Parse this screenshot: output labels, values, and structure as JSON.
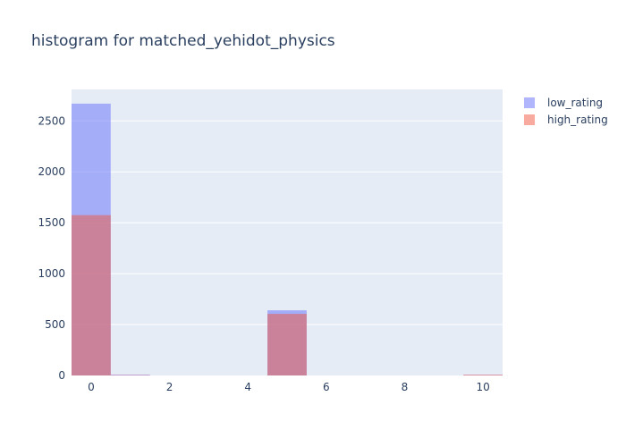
{
  "chart_data": {
    "type": "bar",
    "title": "histogram for matched_yehidot_physics",
    "xlabel": "",
    "ylabel": "",
    "barmode": "overlay",
    "bin_width": 1,
    "xlim": [
      -0.5,
      10.5
    ],
    "ylim": [
      0,
      2810
    ],
    "x_ticks": [
      0,
      2,
      4,
      6,
      8,
      10
    ],
    "y_ticks": [
      0,
      500,
      1000,
      1500,
      2000,
      2500
    ],
    "grid": true,
    "legend_position": "top-right",
    "x": [
      0,
      1,
      2,
      3,
      4,
      5,
      6,
      7,
      8,
      9,
      10
    ],
    "series": [
      {
        "name": "low_rating",
        "color": "#636efa",
        "opacity": 0.5,
        "values": [
          2670,
          8,
          0,
          0,
          0,
          640,
          0,
          0,
          0,
          0,
          5
        ]
      },
      {
        "name": "high_rating",
        "color": "#ef553b",
        "opacity": 0.5,
        "values": [
          1575,
          4,
          0,
          0,
          0,
          605,
          0,
          0,
          0,
          0,
          8
        ]
      }
    ]
  }
}
